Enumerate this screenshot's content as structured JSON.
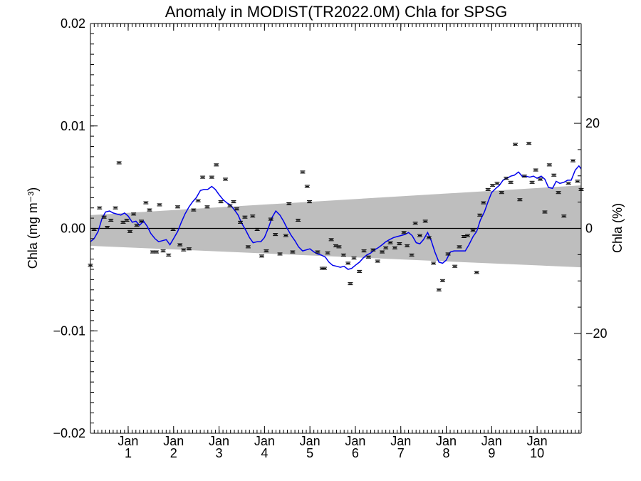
{
  "chart_data": {
    "type": "line",
    "title": "Anomaly in MODIST(TR2022.0M) Chla for SPSG",
    "ylabel_left": "Chla (mg m⁻³)",
    "ylabel_right": "Chla (%)",
    "xlim": [
      0.0,
      10.8
    ],
    "ylim_left": [
      -0.02,
      0.02
    ],
    "ylim_right": [
      -39,
      39
    ],
    "y_ticks_left": [
      {
        "v": -0.02,
        "label": "−0.02"
      },
      {
        "v": -0.01,
        "label": "−0.01"
      },
      {
        "v": 0.0,
        "label": "0.00"
      },
      {
        "v": 0.01,
        "label": "0.01"
      },
      {
        "v": 0.02,
        "label": "0.02"
      }
    ],
    "y_ticks_right": [
      {
        "v": -20,
        "label": "−20"
      },
      {
        "v": 0,
        "label": "0"
      },
      {
        "v": 20,
        "label": "20"
      }
    ],
    "x_ticks": [
      {
        "x": 0.83,
        "line1": "Jan",
        "line2": "1"
      },
      {
        "x": 1.83,
        "line1": "Jan",
        "line2": "2"
      },
      {
        "x": 2.83,
        "line1": "Jan",
        "line2": "3"
      },
      {
        "x": 3.83,
        "line1": "Jan",
        "line2": "4"
      },
      {
        "x": 4.83,
        "line1": "Jan",
        "line2": "5"
      },
      {
        "x": 5.83,
        "line1": "Jan",
        "line2": "6"
      },
      {
        "x": 6.83,
        "line1": "Jan",
        "line2": "7"
      },
      {
        "x": 7.83,
        "line1": "Jan",
        "line2": "8"
      },
      {
        "x": 8.83,
        "line1": "Jan",
        "line2": "9"
      },
      {
        "x": 9.83,
        "line1": "Jan",
        "line2": "10"
      }
    ],
    "band": {
      "x": [
        0.0,
        10.8
      ],
      "upper": [
        0.0013,
        0.0042
      ],
      "lower": [
        -0.0017,
        -0.0038
      ],
      "color": "#bebebe"
    },
    "zero_line": 0.0,
    "series": [
      {
        "type": "line",
        "color": "#0000ee",
        "x": [
          0.0,
          0.08,
          0.17,
          0.25,
          0.33,
          0.42,
          0.5,
          0.58,
          0.67,
          0.75,
          0.83,
          0.92,
          1.0,
          1.08,
          1.17,
          1.25,
          1.33,
          1.42,
          1.5,
          1.58,
          1.67,
          1.75,
          1.83,
          1.92,
          2.0,
          2.08,
          2.17,
          2.25,
          2.33,
          2.42,
          2.5,
          2.58,
          2.67,
          2.75,
          2.83,
          2.92,
          3.0,
          3.08,
          3.17,
          3.25,
          3.33,
          3.42,
          3.5,
          3.58,
          3.67,
          3.75,
          3.83,
          3.92,
          4.0,
          4.08,
          4.17,
          4.25,
          4.33,
          4.42,
          4.5,
          4.58,
          4.67,
          4.75,
          4.83,
          4.92,
          5.0,
          5.08,
          5.17,
          5.25,
          5.33,
          5.42,
          5.5,
          5.58,
          5.67,
          5.75,
          5.83,
          5.92,
          6.0,
          6.08,
          6.17,
          6.25,
          6.33,
          6.42,
          6.5,
          6.58,
          6.67,
          6.75,
          6.83,
          6.92,
          7.0,
          7.08,
          7.17,
          7.25,
          7.33,
          7.42,
          7.5,
          7.58,
          7.67,
          7.75,
          7.83,
          7.92,
          8.0,
          8.08,
          8.17,
          8.25,
          8.33,
          8.42,
          8.5,
          8.58,
          8.67,
          8.75,
          8.83,
          8.92,
          9.0,
          9.08,
          9.17,
          9.25,
          9.33,
          9.42,
          9.5,
          9.58,
          9.67,
          9.75,
          9.83,
          9.92,
          10.0,
          10.08,
          10.17,
          10.25,
          10.33,
          10.42,
          10.5,
          10.58,
          10.67,
          10.75,
          10.8
        ],
        "y": [
          -0.0013,
          -0.001,
          -0.0003,
          0.0009,
          0.0016,
          0.0017,
          0.0015,
          0.0014,
          0.0013,
          0.0015,
          0.0012,
          0.0006,
          0.0007,
          0.0003,
          0.0007,
          0.0002,
          -0.0005,
          -0.001,
          -0.0013,
          -0.0012,
          -0.0011,
          -0.0016,
          -0.001,
          -0.0003,
          0.0006,
          0.0014,
          0.0021,
          0.0026,
          0.003,
          0.0037,
          0.0038,
          0.0038,
          0.0041,
          0.0038,
          0.0033,
          0.0028,
          0.0025,
          0.0023,
          0.0018,
          0.0013,
          0.0005,
          -0.0002,
          -0.0009,
          -0.0014,
          -0.0013,
          -0.0013,
          -0.0009,
          0.0001,
          0.0011,
          0.0017,
          0.0013,
          0.0007,
          0.0,
          -0.0007,
          -0.0012,
          -0.0018,
          -0.0022,
          -0.0021,
          -0.002,
          -0.0023,
          -0.0025,
          -0.0026,
          -0.0028,
          -0.0033,
          -0.0036,
          -0.0037,
          -0.0038,
          -0.0037,
          -0.004,
          -0.0039,
          -0.0036,
          -0.0033,
          -0.0029,
          -0.0026,
          -0.0024,
          -0.0021,
          -0.0019,
          -0.0016,
          -0.0013,
          -0.0011,
          -0.0009,
          -0.0008,
          -0.0007,
          -0.0006,
          -0.0004,
          -0.0007,
          -0.0014,
          -0.0015,
          -0.0011,
          -0.0004,
          -0.0012,
          -0.0023,
          -0.0033,
          -0.0034,
          -0.0031,
          -0.0023,
          -0.0022,
          -0.0022,
          -0.0022,
          -0.0022,
          -0.0016,
          -0.0008,
          -0.0003,
          0.0008,
          0.0016,
          0.0026,
          0.0035,
          0.0039,
          0.0042,
          0.0047,
          0.0049,
          0.0051,
          0.0052,
          0.0055,
          0.0051,
          0.0051,
          0.005,
          0.0051,
          0.0049,
          0.0051,
          0.0048,
          0.004,
          0.0039,
          0.0046,
          0.0044,
          0.0045,
          0.0047,
          0.0047,
          0.0057,
          0.0061,
          0.0058
        ]
      },
      {
        "type": "scatter",
        "marker": "error-bar",
        "color": "#000000",
        "x": [
          0.0,
          0.08,
          0.2,
          0.3,
          0.37,
          0.45,
          0.55,
          0.63,
          0.72,
          0.8,
          0.87,
          0.95,
          1.02,
          1.12,
          1.22,
          1.3,
          1.37,
          1.45,
          1.52,
          1.6,
          1.72,
          1.82,
          1.92,
          1.97,
          2.05,
          2.17,
          2.27,
          2.37,
          2.47,
          2.57,
          2.67,
          2.77,
          2.87,
          2.97,
          3.07,
          3.15,
          3.22,
          3.3,
          3.4,
          3.47,
          3.57,
          3.67,
          3.77,
          3.87,
          3.97,
          4.07,
          4.17,
          4.3,
          4.37,
          4.45,
          4.57,
          4.67,
          4.77,
          4.82,
          5.0,
          5.1,
          5.15,
          5.22,
          5.3,
          5.4,
          5.47,
          5.57,
          5.67,
          5.72,
          5.8,
          5.92,
          6.02,
          6.12,
          6.22,
          6.32,
          6.42,
          6.5,
          6.6,
          6.7,
          6.8,
          6.9,
          6.97,
          7.07,
          7.15,
          7.25,
          7.37,
          7.45,
          7.55,
          7.67,
          7.75,
          7.87,
          8.02,
          8.12,
          8.22,
          8.3,
          8.42,
          8.5,
          8.57,
          8.65,
          8.75,
          8.85,
          8.95,
          9.05,
          9.15,
          9.25,
          9.35,
          9.45,
          9.55,
          9.65,
          9.72,
          9.8,
          9.9,
          10.0,
          10.1,
          10.2,
          10.3,
          10.42,
          10.52,
          10.62,
          10.72,
          10.8
        ],
        "y": [
          -0.0036,
          -0.0001,
          0.002,
          0.0011,
          0.0001,
          0.0008,
          0.002,
          0.0064,
          0.0006,
          0.0008,
          -0.0003,
          0.0014,
          0.0003,
          0.0007,
          0.0025,
          0.0018,
          -0.0023,
          -0.0023,
          0.0023,
          -0.0022,
          -0.0026,
          -0.0001,
          0.0021,
          -0.0016,
          -0.0021,
          -0.002,
          0.0018,
          0.0027,
          0.005,
          0.0021,
          0.005,
          0.0062,
          0.0026,
          0.0048,
          0.0022,
          0.0026,
          0.0019,
          0.0006,
          0.0011,
          -0.0018,
          0.0012,
          -0.0001,
          -0.0027,
          -0.0022,
          0.0009,
          -0.0006,
          -0.0025,
          -0.0007,
          0.0024,
          -0.0023,
          0.0008,
          0.0055,
          0.0041,
          0.0026,
          -0.0023,
          -0.0039,
          -0.0039,
          -0.0024,
          -0.0011,
          -0.0017,
          -0.0018,
          -0.0026,
          -0.0034,
          -0.0054,
          -0.0029,
          -0.0042,
          -0.0022,
          -0.0028,
          -0.0021,
          -0.0032,
          -0.0023,
          -0.0019,
          -0.0014,
          -0.0019,
          -0.0015,
          -0.0004,
          -0.0017,
          -0.0026,
          0.0005,
          -0.0007,
          0.0007,
          -0.0009,
          -0.0034,
          -0.006,
          -0.0051,
          -0.0025,
          -0.0037,
          -0.0018,
          -0.0008,
          -0.0007,
          -0.0002,
          -0.0043,
          0.0013,
          0.0025,
          0.0038,
          0.0042,
          0.0044,
          0.0035,
          0.0049,
          0.0045,
          0.0082,
          0.0028,
          0.0051,
          0.0083,
          0.0045,
          0.0057,
          0.0048,
          0.0016,
          0.0062,
          0.0052,
          0.0035,
          0.0012,
          0.0044,
          0.0066,
          0.0046,
          0.0038
        ]
      }
    ]
  }
}
